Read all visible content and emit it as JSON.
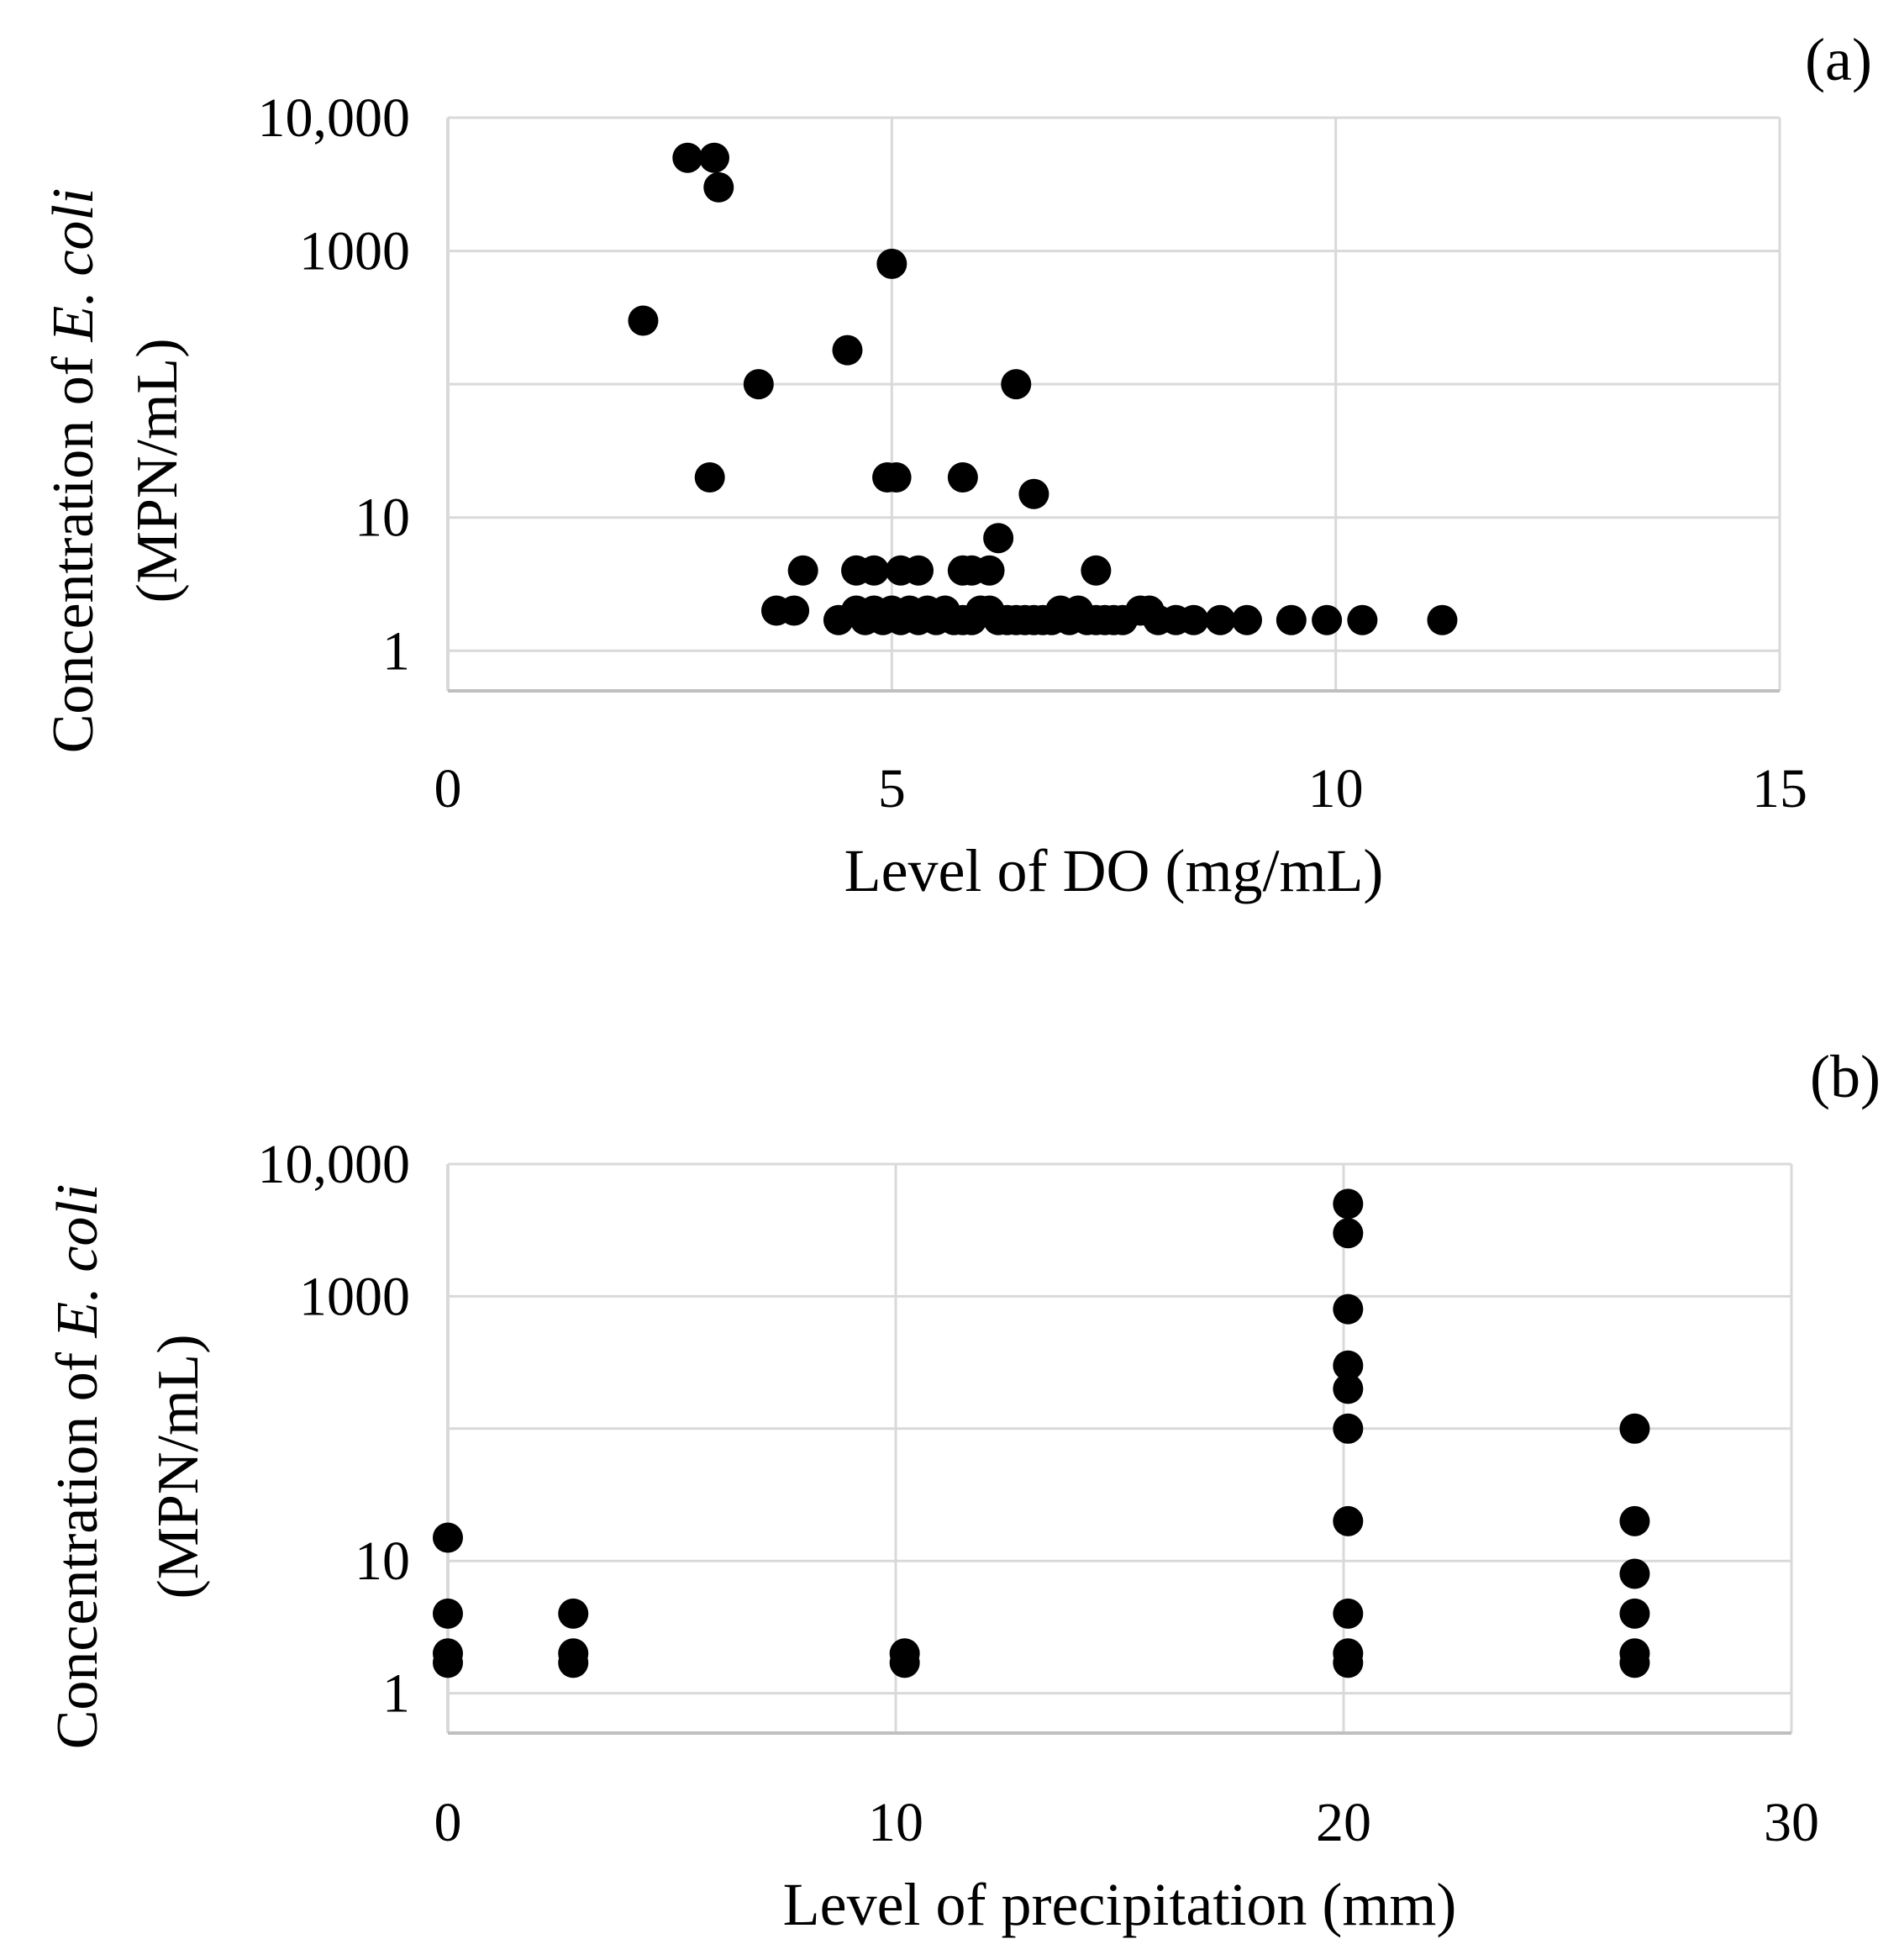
{
  "chart_data": [
    {
      "type": "scatter",
      "panel_label": "(a)",
      "xlabel": "Level of DO (mg/mL)",
      "ylabel_line1_prefix": "Concentration of ",
      "ylabel_line1_italic": "E. coli",
      "ylabel_line2": "(MPN/mL)",
      "xlim": [
        0,
        15
      ],
      "xticks": [
        0,
        5,
        10,
        15
      ],
      "xtick_labels": [
        "0",
        "5",
        "10",
        "15"
      ],
      "yscale": "log",
      "ylim": [
        0.5,
        10000
      ],
      "ytick_labels": [
        {
          "value": 1,
          "label": "1"
        },
        {
          "value": 10,
          "label": "10"
        },
        {
          "value": 1000,
          "label": "1000"
        },
        {
          "value": 10000,
          "label": "10,000"
        }
      ],
      "ygrid": [
        1,
        10,
        100,
        1000,
        10000
      ],
      "grid": true,
      "points": [
        [
          2.2,
          300
        ],
        [
          2.7,
          5000
        ],
        [
          3.0,
          5000
        ],
        [
          3.05,
          3000
        ],
        [
          2.95,
          20
        ],
        [
          3.5,
          100
        ],
        [
          4.5,
          180
        ],
        [
          5.0,
          800
        ],
        [
          4.95,
          20
        ],
        [
          5.05,
          20
        ],
        [
          5.8,
          20
        ],
        [
          6.4,
          100
        ],
        [
          6.6,
          15
        ],
        [
          6.2,
          7
        ],
        [
          3.7,
          2
        ],
        [
          3.9,
          2
        ],
        [
          4.0,
          4
        ],
        [
          4.6,
          4
        ],
        [
          4.8,
          4
        ],
        [
          5.1,
          4
        ],
        [
          5.3,
          4
        ],
        [
          5.8,
          4
        ],
        [
          5.9,
          4
        ],
        [
          6.1,
          4
        ],
        [
          7.3,
          4
        ],
        [
          4.4,
          1.7
        ],
        [
          4.6,
          2
        ],
        [
          4.7,
          1.7
        ],
        [
          4.8,
          2
        ],
        [
          4.9,
          1.7
        ],
        [
          5.0,
          2
        ],
        [
          5.1,
          1.7
        ],
        [
          5.2,
          2
        ],
        [
          5.3,
          1.7
        ],
        [
          5.4,
          2
        ],
        [
          5.5,
          1.7
        ],
        [
          5.6,
          2
        ],
        [
          5.7,
          1.7
        ],
        [
          5.8,
          1.7
        ],
        [
          5.9,
          1.7
        ],
        [
          6.0,
          2
        ],
        [
          6.1,
          2
        ],
        [
          6.2,
          1.7
        ],
        [
          6.3,
          1.7
        ],
        [
          6.4,
          1.7
        ],
        [
          6.5,
          1.7
        ],
        [
          6.6,
          1.7
        ],
        [
          6.7,
          1.7
        ],
        [
          6.8,
          1.7
        ],
        [
          6.9,
          2
        ],
        [
          7.0,
          1.7
        ],
        [
          7.1,
          2
        ],
        [
          7.2,
          1.7
        ],
        [
          7.3,
          1.7
        ],
        [
          7.4,
          1.7
        ],
        [
          7.5,
          1.7
        ],
        [
          7.6,
          1.7
        ],
        [
          7.8,
          2
        ],
        [
          7.9,
          2
        ],
        [
          8.0,
          1.7
        ],
        [
          8.2,
          1.7
        ],
        [
          8.4,
          1.7
        ],
        [
          8.7,
          1.7
        ],
        [
          9.0,
          1.7
        ],
        [
          9.5,
          1.7
        ],
        [
          9.9,
          1.7
        ],
        [
          10.3,
          1.7
        ],
        [
          11.2,
          1.7
        ]
      ]
    },
    {
      "type": "scatter",
      "panel_label": "(b)",
      "xlabel": "Level of precipitation (mm)",
      "ylabel_line1_prefix": "Concentration of ",
      "ylabel_line1_italic": "E. coli",
      "ylabel_line2": "(MPN/mL)",
      "xlim": [
        0,
        30
      ],
      "xticks": [
        0,
        10,
        20,
        30
      ],
      "xtick_labels": [
        "0",
        "10",
        "20",
        "30"
      ],
      "yscale": "log",
      "ylim": [
        0.5,
        10000
      ],
      "ytick_labels": [
        {
          "value": 1,
          "label": "1"
        },
        {
          "value": 10,
          "label": "10"
        },
        {
          "value": 1000,
          "label": "1000"
        },
        {
          "value": 10000,
          "label": "10,000"
        }
      ],
      "ygrid": [
        1,
        10,
        100,
        1000,
        10000
      ],
      "grid": true,
      "xgrid": [
        10,
        20,
        30
      ],
      "points": [
        [
          0,
          15
        ],
        [
          0,
          4
        ],
        [
          0,
          2
        ],
        [
          0,
          1.7
        ],
        [
          2.8,
          4
        ],
        [
          2.8,
          2
        ],
        [
          2.8,
          1.7
        ],
        [
          10.2,
          2
        ],
        [
          10.2,
          1.7
        ],
        [
          20.1,
          5000
        ],
        [
          20.1,
          3000
        ],
        [
          20.1,
          800
        ],
        [
          20.1,
          300
        ],
        [
          20.1,
          200
        ],
        [
          20.1,
          100
        ],
        [
          20.1,
          20
        ],
        [
          20.1,
          4
        ],
        [
          20.1,
          2
        ],
        [
          20.1,
          1.7
        ],
        [
          26.5,
          100
        ],
        [
          26.5,
          20
        ],
        [
          26.5,
          8
        ],
        [
          26.5,
          4
        ],
        [
          26.5,
          2
        ],
        [
          26.5,
          1.7
        ]
      ]
    }
  ]
}
